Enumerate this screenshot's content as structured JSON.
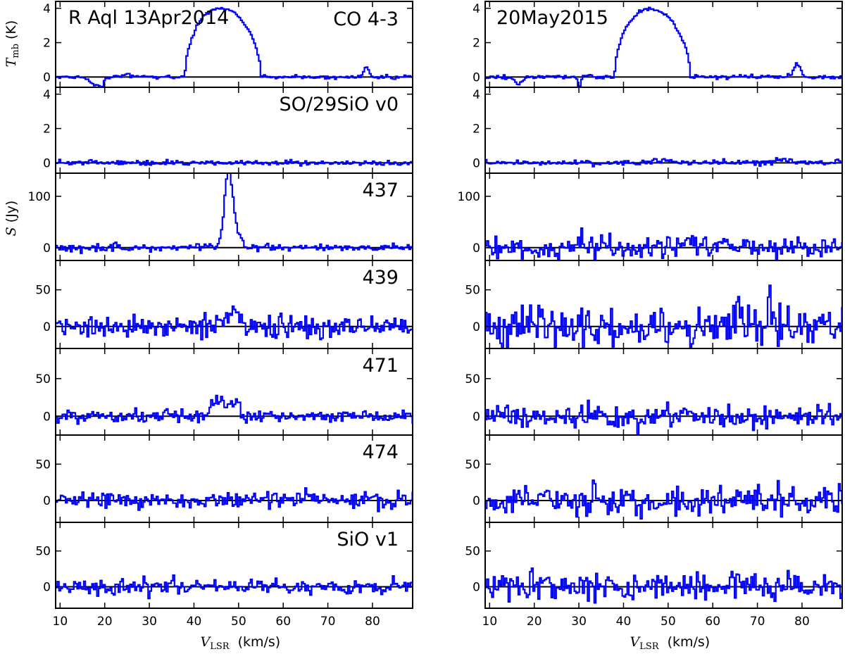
{
  "chart_data": {
    "type": "line",
    "columns": [
      {
        "title": "R Aql 13Apr2014",
        "xlabel": "V",
        "xlabel_sub": "LSR",
        "xlabel_unit": "(km/s)"
      },
      {
        "title": "20May2015",
        "xlabel": "V",
        "xlabel_sub": "LSR",
        "xlabel_unit": "(km/s)"
      }
    ],
    "xlim": [
      9,
      89
    ],
    "xticks": [
      10,
      20,
      30,
      40,
      50,
      60,
      70,
      80
    ],
    "line_color": "#0000ff",
    "y_labels": [
      {
        "text": "T",
        "sub": "mb",
        "unit": "(K)"
      },
      {
        "text": "S",
        "sub": "",
        "unit": "(Jy)"
      }
    ],
    "rows": [
      {
        "label": "CO 4-3",
        "ylim": [
          -0.6,
          4.4
        ],
        "yticks": [
          0,
          2,
          4
        ],
        "series": [
          {
            "name": "13Apr2014",
            "seed": 11,
            "noise": 0.05,
            "peaks": [
              {
                "c": 46.5,
                "w": 8.5,
                "a": 4.0,
                "shape": "parab",
                "slope": 0.6
              },
              {
                "c": 78.7,
                "w": 0.6,
                "a": 0.55,
                "shape": "gauss"
              },
              {
                "c": 18.0,
                "w": 1.2,
                "a": -0.45,
                "shape": "gauss"
              },
              {
                "c": 19.3,
                "w": 0.3,
                "a": -0.5,
                "shape": "gauss"
              },
              {
                "c": 25.0,
                "w": 1.5,
                "a": 0.12,
                "shape": "gauss"
              }
            ]
          },
          {
            "name": "20May2015",
            "seed": 17,
            "noise": 0.06,
            "peaks": [
              {
                "c": 46.5,
                "w": 8.5,
                "a": 3.95,
                "shape": "parab",
                "slope": 0.6
              },
              {
                "c": 78.9,
                "w": 0.7,
                "a": 0.8,
                "shape": "gauss"
              },
              {
                "c": 16.5,
                "w": 0.8,
                "a": -0.4,
                "shape": "gauss"
              },
              {
                "c": 30.2,
                "w": 0.3,
                "a": -0.6,
                "shape": "gauss"
              }
            ]
          }
        ]
      },
      {
        "label": "SO/29SiO v0",
        "ylim": [
          -0.6,
          4.4
        ],
        "yticks": [
          0,
          2,
          4
        ],
        "series": [
          {
            "name": "13Apr2014",
            "seed": 23,
            "noise": 0.07,
            "peaks": []
          },
          {
            "name": "20May2015",
            "seed": 29,
            "noise": 0.08,
            "peaks": [
              {
                "c": 48.0,
                "w": 3.0,
                "a": 0.12,
                "shape": "gauss"
              },
              {
                "c": 76.0,
                "w": 2.0,
                "a": 0.18,
                "shape": "gauss"
              }
            ]
          }
        ]
      },
      {
        "label": "437",
        "ylim": [
          -25,
          145
        ],
        "yticks": [
          0,
          100
        ],
        "series": [
          {
            "name": "13Apr2014",
            "seed": 31,
            "noise": 3.5,
            "peaks": [
              {
                "c": 47.6,
                "w": 0.85,
                "a": 125,
                "shape": "gauss"
              },
              {
                "c": 48.9,
                "w": 1.2,
                "a": 45,
                "shape": "gauss"
              }
            ]
          },
          {
            "name": "20May2015",
            "seed": 37,
            "noise": 11,
            "peaks": []
          }
        ]
      },
      {
        "label": "439",
        "ylim": [
          -30,
          90
        ],
        "yticks": [
          0,
          50
        ],
        "series": [
          {
            "name": "13Apr2014",
            "seed": 41,
            "noise": 7,
            "peaks": [
              {
                "c": 48.0,
                "w": 3.0,
                "a": 17,
                "shape": "flat"
              }
            ]
          },
          {
            "name": "20May2015",
            "seed": 43,
            "noise": 13,
            "peaks": [
              {
                "c": 65.8,
                "w": 0.25,
                "a": 38,
                "shape": "gauss"
              },
              {
                "c": 72.5,
                "w": 0.3,
                "a": 30,
                "shape": "gauss"
              }
            ]
          }
        ]
      },
      {
        "label": "471",
        "ylim": [
          -25,
          90
        ],
        "yticks": [
          0,
          50
        ],
        "series": [
          {
            "name": "13Apr2014",
            "seed": 47,
            "noise": 4,
            "peaks": [
              {
                "c": 47.0,
                "w": 3.5,
                "a": 20,
                "shape": "flat"
              }
            ]
          },
          {
            "name": "20May2015",
            "seed": 53,
            "noise": 7,
            "peaks": []
          }
        ]
      },
      {
        "label": "474",
        "ylim": [
          -30,
          90
        ],
        "yticks": [
          0,
          50
        ],
        "series": [
          {
            "name": "13Apr2014",
            "seed": 59,
            "noise": 6,
            "peaks": [
              {
                "c": 65.2,
                "w": 0.25,
                "a": 17,
                "shape": "gauss"
              }
            ]
          },
          {
            "name": "20May2015",
            "seed": 61,
            "noise": 10,
            "peaks": [
              {
                "c": 74.5,
                "w": 0.4,
                "a": 20,
                "shape": "gauss"
              }
            ]
          }
        ]
      },
      {
        "label": "SiO v1",
        "ylim": [
          -30,
          90
        ],
        "yticks": [
          0,
          50
        ],
        "series": [
          {
            "name": "13Apr2014",
            "seed": 67,
            "noise": 5,
            "peaks": []
          },
          {
            "name": "20May2015",
            "seed": 71,
            "noise": 9,
            "peaks": []
          }
        ]
      }
    ]
  }
}
